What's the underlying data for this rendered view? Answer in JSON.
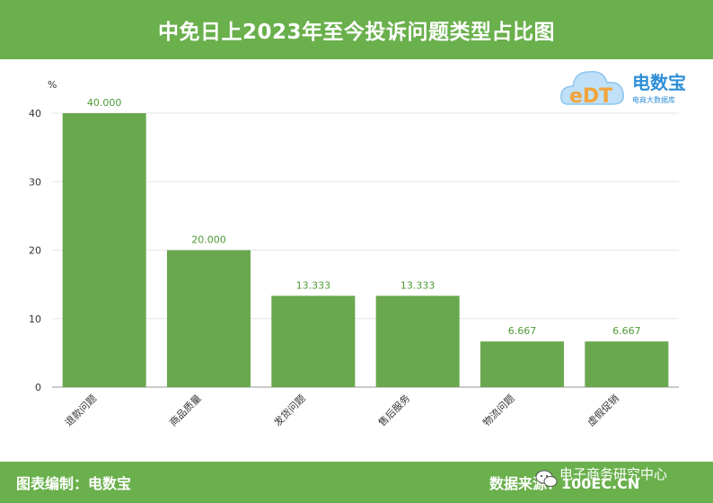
{
  "header": {
    "title": "中免日上2023年至今投诉问题类型占比图"
  },
  "logo": {
    "name": "电数宝",
    "sub": "电商大数据库",
    "mark": "eDT"
  },
  "footer": {
    "left": "图表编制：电数宝",
    "right": "数据来源：100EC.CN",
    "account": "电子商务研究中心"
  },
  "colors": {
    "theme": "#6ab04c",
    "bar": "#6aa84f",
    "label": "#4e9a35"
  },
  "chart_data": {
    "type": "bar",
    "ylabel": "%",
    "ylim": [
      0,
      40
    ],
    "yticks": [
      0,
      10,
      20,
      30,
      40
    ],
    "categories": [
      "退款问题",
      "商品质量",
      "发货问题",
      "售后服务",
      "物流问题",
      "虚假促销"
    ],
    "values": [
      40.0,
      20.0,
      13.333,
      13.333,
      6.667,
      6.667
    ],
    "value_labels": [
      "40.000",
      "20.000",
      "13.333",
      "13.333",
      "6.667",
      "6.667"
    ],
    "grid": true
  }
}
